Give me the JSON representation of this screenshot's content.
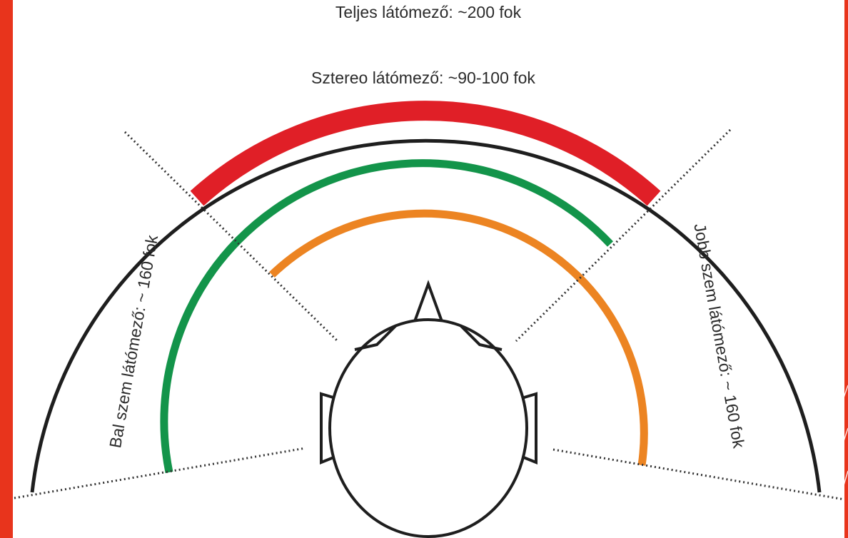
{
  "labels": {
    "total_field": "Teljes látómező: ~200 fok",
    "stereo_field": "Sztereo látómező: ~90-100 fok",
    "left_eye_field": "Bal szem látómező: ~ 160 fok",
    "right_eye_field": "Jobb szem látómező: ~ 160 fok"
  },
  "colors": {
    "slide_background": "#e8341c",
    "panel_background": "#ffffff",
    "total_field_arc": "#1e1e1e",
    "stereo_field_arc": "#e01f27",
    "left_eye_arc": "#13944a",
    "right_eye_arc": "#ec8422",
    "head_outline": "#1e1e1e",
    "boundary_lines": "#333333"
  }
}
